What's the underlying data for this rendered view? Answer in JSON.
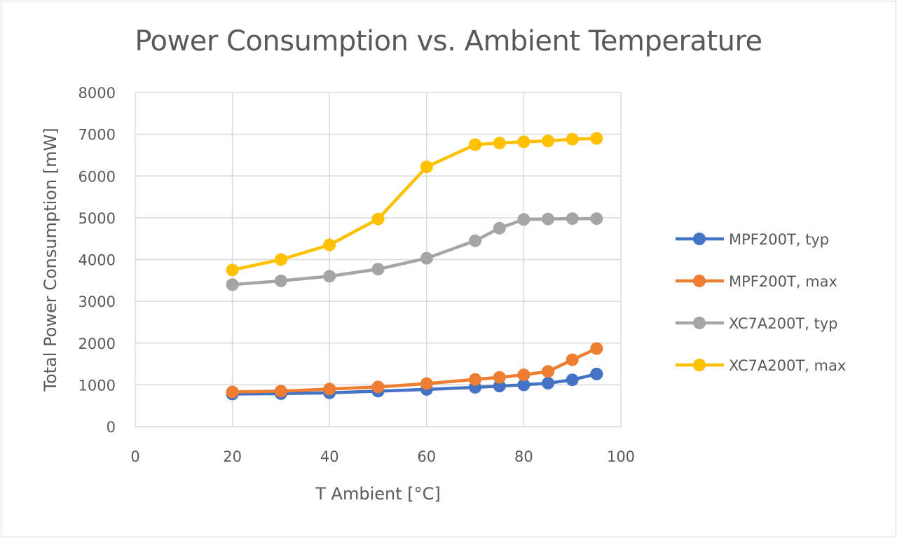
{
  "chart_data": {
    "type": "line",
    "title": "Power Consumption vs. Ambient Temperature",
    "xlabel": "T Ambient [°C]",
    "ylabel": "Total Power Consumption [mW]",
    "xlim": [
      0,
      100
    ],
    "ylim": [
      0,
      8000
    ],
    "xticks": [
      0,
      20,
      40,
      60,
      80,
      100
    ],
    "yticks": [
      0,
      1000,
      2000,
      3000,
      4000,
      5000,
      6000,
      7000,
      8000
    ],
    "grid": true,
    "legend_position": "right",
    "x": [
      20,
      30,
      40,
      50,
      60,
      70,
      75,
      80,
      85,
      90,
      95
    ],
    "series": [
      {
        "name": "MPF200T, typ",
        "color": "#4472c4",
        "values": [
          780,
          790,
          810,
          850,
          890,
          940,
          970,
          1000,
          1040,
          1120,
          1260
        ]
      },
      {
        "name": "MPF200T, max",
        "color": "#ed7d31",
        "values": [
          830,
          850,
          900,
          950,
          1030,
          1130,
          1180,
          1240,
          1320,
          1600,
          1870
        ]
      },
      {
        "name": "XC7A200T, typ",
        "color": "#a5a5a5",
        "values": [
          3400,
          3490,
          3600,
          3770,
          4030,
          4450,
          4750,
          4960,
          4970,
          4980,
          4980
        ]
      },
      {
        "name": "XC7A200T, max",
        "color": "#ffc000",
        "values": [
          3750,
          4000,
          4350,
          4970,
          6220,
          6750,
          6790,
          6820,
          6840,
          6880,
          6900
        ]
      }
    ]
  }
}
